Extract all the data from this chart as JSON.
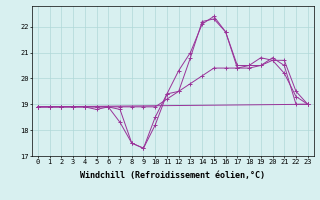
{
  "background_color": "#d8f0f0",
  "grid_color": "#b0d8d8",
  "line_color": "#993399",
  "xlim": [
    -0.5,
    23.5
  ],
  "ylim": [
    17,
    22.8
  ],
  "yticks": [
    17,
    18,
    19,
    20,
    21,
    22
  ],
  "xticks": [
    0,
    1,
    2,
    3,
    4,
    5,
    6,
    7,
    8,
    9,
    10,
    11,
    12,
    13,
    14,
    15,
    16,
    17,
    18,
    19,
    20,
    21,
    22,
    23
  ],
  "xlabel": "Windchill (Refroidissement éolien,°C)",
  "series": [
    {
      "x": [
        0,
        1,
        2,
        3,
        4,
        5,
        6,
        7,
        8,
        9,
        10,
        11,
        12,
        13,
        14,
        15,
        16,
        17,
        18,
        19,
        20,
        21,
        22,
        23
      ],
      "y": [
        18.9,
        18.9,
        18.9,
        18.9,
        18.9,
        18.9,
        18.9,
        18.8,
        17.5,
        17.3,
        18.2,
        19.4,
        19.5,
        20.8,
        22.2,
        22.3,
        21.8,
        20.5,
        20.5,
        20.8,
        20.7,
        20.2,
        19.3,
        19.0
      ]
    },
    {
      "x": [
        0,
        1,
        2,
        3,
        4,
        5,
        6,
        7,
        8,
        9,
        10,
        11,
        12,
        13,
        14,
        15,
        16,
        17,
        18,
        19,
        20,
        21,
        22,
        23
      ],
      "y": [
        18.9,
        18.9,
        18.9,
        18.9,
        18.9,
        18.9,
        18.9,
        18.9,
        18.9,
        18.9,
        18.9,
        19.2,
        19.5,
        19.8,
        20.1,
        20.4,
        20.4,
        20.4,
        20.4,
        20.5,
        20.7,
        20.7,
        19.5,
        19.0
      ]
    },
    {
      "x": [
        0,
        23
      ],
      "y": [
        18.9,
        19.0
      ]
    },
    {
      "x": [
        0,
        1,
        2,
        3,
        4,
        5,
        6,
        7,
        8,
        9,
        10,
        11,
        12,
        13,
        14,
        15,
        16,
        17,
        18,
        19,
        20,
        21,
        22,
        23
      ],
      "y": [
        18.9,
        18.9,
        18.9,
        18.9,
        18.9,
        18.8,
        18.9,
        18.3,
        17.5,
        17.3,
        18.5,
        19.4,
        20.3,
        21.0,
        22.1,
        22.4,
        21.8,
        20.4,
        20.5,
        20.5,
        20.8,
        20.5,
        19.0,
        19.0
      ]
    }
  ],
  "axis_fontsize": 5.5,
  "tick_fontsize": 5.0,
  "xlabel_fontsize": 6.0
}
